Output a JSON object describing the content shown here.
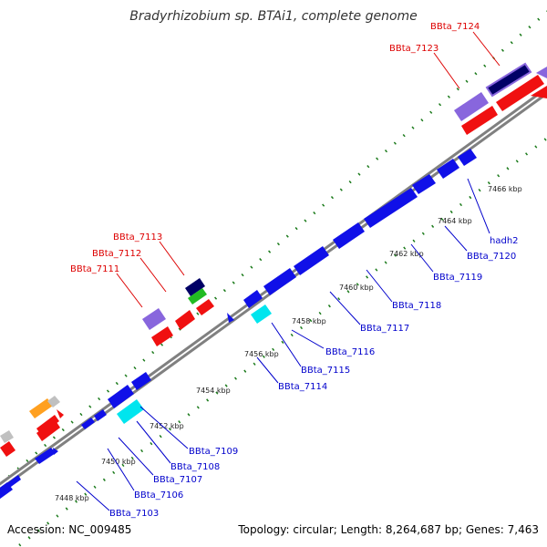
{
  "title": "Bradyrhizobium sp. BTAi1, complete genome",
  "footer": {
    "accession": "Accession: NC_009485",
    "info": "Topology: circular; Length: 8,264,687 bp; Genes: 7,463"
  },
  "colors": {
    "backbone": "#808080",
    "dots": "#1a7a1a",
    "forward_cds": "#1010e8",
    "reverse_cds": "#f01010",
    "label_forward": "#0000cc",
    "label_reverse": "#dd0000",
    "rna": "#00e5ee",
    "pseudo": "#8866dd",
    "other": "#ffa020",
    "gray": "#c0c0c0",
    "navy": "#000066",
    "green": "#22bb22"
  },
  "ticks": [
    {
      "label": "7448 kbp",
      "pos": 7448
    },
    {
      "label": "7450 kbp",
      "pos": 7450
    },
    {
      "label": "7452 kbp",
      "pos": 7452
    },
    {
      "label": "7454 kbp",
      "pos": 7454
    },
    {
      "label": "7456 kbp",
      "pos": 7456
    },
    {
      "label": "7458 kbp",
      "pos": 7458
    },
    {
      "label": "7460 kbp",
      "pos": 7460
    },
    {
      "label": "7462 kbp",
      "pos": 7462
    },
    {
      "label": "7464 kbp",
      "pos": 7464
    },
    {
      "label": "7466 kbp",
      "pos": 7466
    }
  ],
  "gene_labels": [
    {
      "text": "BBta_7124",
      "strand": "reverse"
    },
    {
      "text": "BBta_7123",
      "strand": "reverse"
    },
    {
      "text": "BBta_7113",
      "strand": "reverse"
    },
    {
      "text": "BBta_7112",
      "strand": "reverse"
    },
    {
      "text": "BBta_7111",
      "strand": "reverse"
    },
    {
      "text": "hadh2",
      "strand": "forward"
    },
    {
      "text": "BBta_7120",
      "strand": "forward"
    },
    {
      "text": "BBta_7119",
      "strand": "forward"
    },
    {
      "text": "BBta_7118",
      "strand": "forward"
    },
    {
      "text": "BBta_7117",
      "strand": "forward"
    },
    {
      "text": "BBta_7116",
      "strand": "forward"
    },
    {
      "text": "BBta_7115",
      "strand": "forward"
    },
    {
      "text": "BBta_7114",
      "strand": "forward"
    },
    {
      "text": "BBta_7109",
      "strand": "forward"
    },
    {
      "text": "BBta_7108",
      "strand": "forward"
    },
    {
      "text": "BBta_7107",
      "strand": "forward"
    },
    {
      "text": "BBta_7106",
      "strand": "forward"
    },
    {
      "text": "BBta_7103",
      "strand": "forward"
    }
  ]
}
